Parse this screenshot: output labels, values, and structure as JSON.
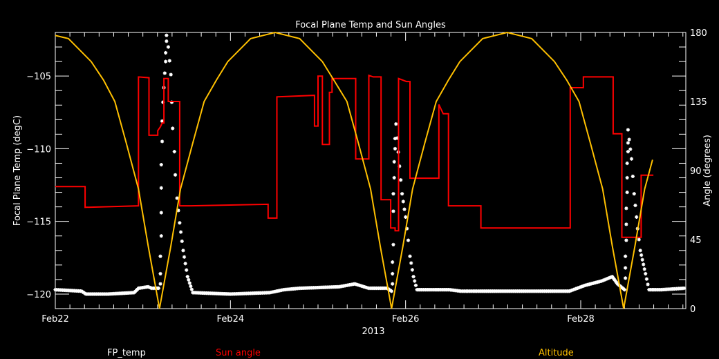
{
  "chart_data": {
    "type": "line",
    "title": "Focal Plane Temp and Sun Angles",
    "xlabel": "2013",
    "ylabel_left": "Focal Plane Temp (degC)",
    "ylabel_right": "Angle (degrees)",
    "x_units": "day of February 2013",
    "xlim": [
      22.0,
      29.2
    ],
    "ylim_left": [
      -121,
      -102
    ],
    "ylim_right": [
      0,
      180
    ],
    "grid": false,
    "background": "#000000",
    "x_ticks": [
      {
        "value": 22,
        "label": "Feb22"
      },
      {
        "value": 24,
        "label": "Feb24"
      },
      {
        "value": 26,
        "label": "Feb26"
      },
      {
        "value": 28,
        "label": "Feb28"
      }
    ],
    "y_ticks_left": [
      {
        "value": -120,
        "label": "−120"
      },
      {
        "value": -115,
        "label": "−115"
      },
      {
        "value": -110,
        "label": "−110"
      },
      {
        "value": -105,
        "label": "−105"
      }
    ],
    "y_ticks_right": [
      {
        "value": 0,
        "label": "0"
      },
      {
        "value": 45,
        "label": "45"
      },
      {
        "value": 90,
        "label": "90"
      },
      {
        "value": 135,
        "label": "135"
      },
      {
        "value": 180,
        "label": "180"
      }
    ],
    "legend": {
      "placement": "bottom",
      "entries": [
        {
          "label": "FP_temp",
          "color": "#ffffff"
        },
        {
          "label": "Sun angle",
          "color": "#ff0000"
        },
        {
          "label": "Altitude",
          "color": "#ffc000"
        }
      ]
    },
    "series": [
      {
        "name": "FP_temp",
        "axis": "left",
        "color": "#ffffff",
        "marker": "asterisk",
        "points": [
          [
            22.0,
            -119.7
          ],
          [
            22.3,
            -119.8
          ],
          [
            22.35,
            -120.0
          ],
          [
            22.6,
            -120.0
          ],
          [
            22.9,
            -119.9
          ],
          [
            22.95,
            -119.6
          ],
          [
            23.06,
            -119.5
          ],
          [
            23.1,
            -119.6
          ],
          [
            23.18,
            -119.6
          ],
          [
            23.2,
            -119.3
          ],
          [
            23.2,
            -118.6
          ],
          [
            23.2,
            -117.4
          ],
          [
            23.21,
            -116.0
          ],
          [
            23.21,
            -114.4
          ],
          [
            23.21,
            -112.7
          ],
          [
            23.21,
            -111.1
          ],
          [
            23.22,
            -109.5
          ],
          [
            23.22,
            -108.1
          ],
          [
            23.23,
            -106.8
          ],
          [
            23.24,
            -105.8
          ],
          [
            23.25,
            -104.8
          ],
          [
            23.26,
            -104.0
          ],
          [
            23.26,
            -103.4
          ],
          [
            23.27,
            -102.6
          ],
          [
            23.27,
            -102.2
          ],
          [
            23.29,
            -103.0
          ],
          [
            23.32,
            -104.9
          ],
          [
            23.33,
            -106.8
          ],
          [
            23.34,
            -108.6
          ],
          [
            23.36,
            -110.2
          ],
          [
            23.37,
            -111.8
          ],
          [
            23.39,
            -113.4
          ],
          [
            23.42,
            -115.1
          ],
          [
            23.46,
            -117.0
          ],
          [
            23.51,
            -118.8
          ],
          [
            23.57,
            -119.9
          ],
          [
            24.0,
            -120.0
          ],
          [
            24.45,
            -119.9
          ],
          [
            24.61,
            -119.7
          ],
          [
            24.79,
            -119.6
          ],
          [
            25.24,
            -119.5
          ],
          [
            25.42,
            -119.3
          ],
          [
            25.58,
            -119.6
          ],
          [
            25.79,
            -119.6
          ],
          [
            25.84,
            -119.8
          ],
          [
            25.85,
            -119.3
          ],
          [
            25.85,
            -118.6
          ],
          [
            25.85,
            -117.8
          ],
          [
            25.86,
            -116.6
          ],
          [
            25.86,
            -114.3
          ],
          [
            25.86,
            -113.1
          ],
          [
            25.87,
            -112.0
          ],
          [
            25.87,
            -110.9
          ],
          [
            25.88,
            -110.0
          ],
          [
            25.88,
            -109.3
          ],
          [
            25.89,
            -108.3
          ],
          [
            25.93,
            -111.2
          ],
          [
            25.96,
            -113.1
          ],
          [
            26.0,
            -114.7
          ],
          [
            26.03,
            -116.3
          ],
          [
            26.05,
            -117.4
          ],
          [
            26.09,
            -118.8
          ],
          [
            26.13,
            -119.7
          ],
          [
            26.29,
            -119.7
          ],
          [
            26.5,
            -119.7
          ],
          [
            26.63,
            -119.8
          ],
          [
            26.76,
            -119.8
          ],
          [
            26.85,
            -119.8
          ],
          [
            27.87,
            -119.8
          ],
          [
            28.05,
            -119.4
          ],
          [
            28.24,
            -119.1
          ],
          [
            28.36,
            -118.8
          ],
          [
            28.42,
            -119.3
          ],
          [
            28.5,
            -119.7
          ],
          [
            28.51,
            -118.9
          ],
          [
            28.51,
            -118.2
          ],
          [
            28.51,
            -117.4
          ],
          [
            28.52,
            -116.3
          ],
          [
            28.52,
            -115.2
          ],
          [
            28.52,
            -114.1
          ],
          [
            28.53,
            -113.0
          ],
          [
            28.53,
            -112.0
          ],
          [
            28.53,
            -111.0
          ],
          [
            28.54,
            -110.2
          ],
          [
            28.54,
            -109.6
          ],
          [
            28.54,
            -108.7
          ],
          [
            28.58,
            -110.7
          ],
          [
            28.61,
            -113.1
          ],
          [
            28.65,
            -115.5
          ],
          [
            28.68,
            -117.0
          ],
          [
            28.74,
            -118.6
          ],
          [
            28.78,
            -119.7
          ],
          [
            28.92,
            -119.7
          ],
          [
            29.18,
            -119.6
          ]
        ]
      },
      {
        "name": "Sun angle",
        "axis": "right",
        "color": "#ff0000",
        "style": "step",
        "points": [
          [
            22.0,
            79.5
          ],
          [
            22.34,
            79.5
          ],
          [
            22.34,
            66
          ],
          [
            22.95,
            67
          ],
          [
            22.95,
            151
          ],
          [
            23.07,
            150.5
          ],
          [
            23.07,
            113
          ],
          [
            23.17,
            113
          ],
          [
            23.17,
            116
          ],
          [
            23.2,
            118.5
          ],
          [
            23.22,
            121
          ],
          [
            23.24,
            121
          ],
          [
            23.24,
            150
          ],
          [
            23.29,
            150
          ],
          [
            23.29,
            135
          ],
          [
            23.42,
            135
          ],
          [
            23.42,
            67
          ],
          [
            23.55,
            67
          ],
          [
            24.43,
            68
          ],
          [
            24.43,
            59
          ],
          [
            24.53,
            59
          ],
          [
            24.53,
            138
          ],
          [
            24.96,
            139
          ],
          [
            24.96,
            119
          ],
          [
            25.0,
            119
          ],
          [
            25.0,
            151.5
          ],
          [
            25.05,
            151.5
          ],
          [
            25.05,
            107
          ],
          [
            25.13,
            107
          ],
          [
            25.13,
            141
          ],
          [
            25.16,
            141
          ],
          [
            25.16,
            150
          ],
          [
            25.43,
            150
          ],
          [
            25.43,
            97.5
          ],
          [
            25.58,
            97.5
          ],
          [
            25.58,
            152
          ],
          [
            25.63,
            151
          ],
          [
            25.72,
            151
          ],
          [
            25.72,
            71
          ],
          [
            25.83,
            71
          ],
          [
            25.83,
            52.5
          ],
          [
            25.88,
            52.5
          ],
          [
            25.88,
            50.7
          ],
          [
            25.92,
            50.7
          ],
          [
            25.92,
            150
          ],
          [
            26.01,
            148
          ],
          [
            26.05,
            148
          ],
          [
            26.05,
            85
          ],
          [
            26.38,
            85
          ],
          [
            26.38,
            133
          ],
          [
            26.43,
            127
          ],
          [
            26.49,
            127
          ],
          [
            26.49,
            67
          ],
          [
            26.86,
            67
          ],
          [
            26.86,
            52.5
          ],
          [
            27.88,
            52.5
          ],
          [
            27.88,
            144
          ],
          [
            28.03,
            144
          ],
          [
            28.03,
            151
          ],
          [
            28.37,
            151
          ],
          [
            28.37,
            114
          ],
          [
            28.47,
            114
          ],
          [
            28.47,
            46.5
          ],
          [
            28.69,
            46.5
          ],
          [
            28.69,
            87
          ],
          [
            28.83,
            87
          ]
        ]
      },
      {
        "name": "Altitude",
        "axis": "right",
        "color": "#ffc000",
        "points": [
          [
            22.0,
            178
          ],
          [
            22.15,
            176
          ],
          [
            22.41,
            161
          ],
          [
            22.55,
            149
          ],
          [
            22.68,
            135
          ],
          [
            22.81,
            108
          ],
          [
            22.95,
            78
          ],
          [
            23.06,
            41
          ],
          [
            23.19,
            0
          ],
          [
            23.32,
            41
          ],
          [
            23.43,
            78
          ],
          [
            23.57,
            108
          ],
          [
            23.7,
            135
          ],
          [
            23.84,
            149
          ],
          [
            23.97,
            161
          ],
          [
            24.23,
            176
          ],
          [
            24.51,
            180
          ],
          [
            24.79,
            176
          ],
          [
            25.05,
            161
          ],
          [
            25.18,
            149
          ],
          [
            25.33,
            135
          ],
          [
            25.46,
            108
          ],
          [
            25.6,
            78
          ],
          [
            25.71,
            41
          ],
          [
            25.84,
            0
          ],
          [
            25.97,
            41
          ],
          [
            26.08,
            78
          ],
          [
            26.22,
            108
          ],
          [
            26.35,
            135
          ],
          [
            26.49,
            149
          ],
          [
            26.62,
            161
          ],
          [
            26.88,
            176
          ],
          [
            27.16,
            180
          ],
          [
            27.44,
            176
          ],
          [
            27.7,
            161
          ],
          [
            27.84,
            149
          ],
          [
            27.98,
            135
          ],
          [
            28.11,
            108
          ],
          [
            28.25,
            78
          ],
          [
            28.36,
            41
          ],
          [
            28.49,
            0
          ],
          [
            28.62,
            41
          ],
          [
            28.73,
            78
          ],
          [
            28.82,
            97
          ]
        ]
      }
    ]
  }
}
